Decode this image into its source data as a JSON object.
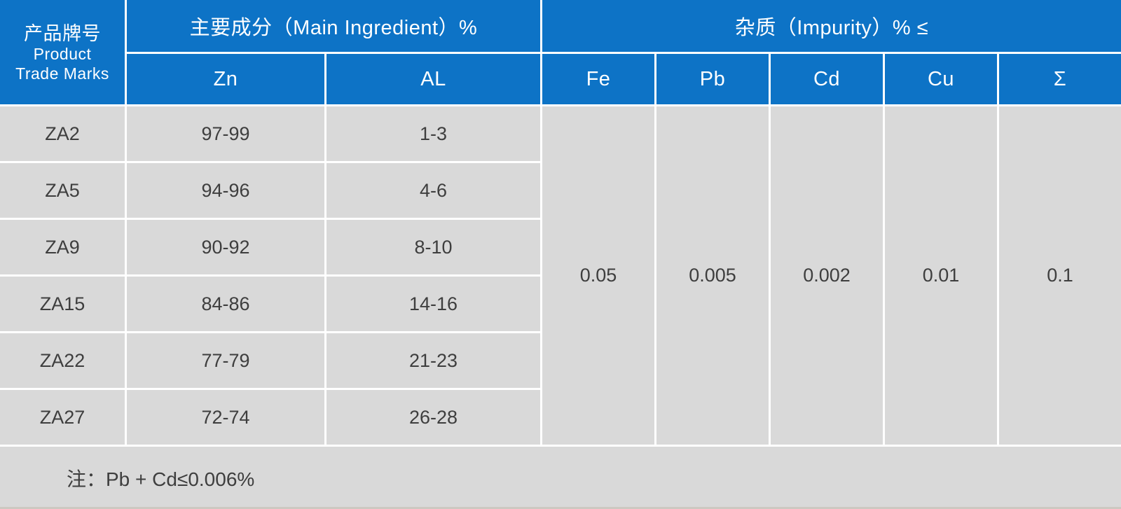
{
  "colors": {
    "header_blue": "#0d73c6",
    "row_gray": "#d9d9d9",
    "border_white": "#ffffff",
    "body_text": "#3e3e3e",
    "header_text": "#ffffff"
  },
  "chart_data": {
    "type": "table",
    "title": "Zinc alloy product composition specification table",
    "header": {
      "corner": [
        "产品牌号",
        "Product",
        "Trade Marks"
      ],
      "groups": [
        {
          "label": "主要成分（Main Ingredient）%",
          "columns": [
            "Zn",
            "AL"
          ]
        },
        {
          "label": "杂质（Impurity）% ≤",
          "columns": [
            "Fe",
            "Pb",
            "Cd",
            "Cu",
            "Σ"
          ]
        }
      ],
      "columns": {
        "zn": "Zn",
        "al": "AL",
        "fe": "Fe",
        "pb": "Pb",
        "cd": "Cd",
        "cu": "Cu",
        "sum": "Σ"
      }
    },
    "rows": [
      {
        "trade_mark": "ZA2",
        "zn": "97-99",
        "al": "1-3"
      },
      {
        "trade_mark": "ZA5",
        "zn": "94-96",
        "al": "4-6"
      },
      {
        "trade_mark": "ZA9",
        "zn": "90-92",
        "al": "8-10"
      },
      {
        "trade_mark": "ZA15",
        "zn": "84-86",
        "al": "14-16"
      },
      {
        "trade_mark": "ZA22",
        "zn": "77-79",
        "al": "21-23"
      },
      {
        "trade_mark": "ZA27",
        "zn": "72-74",
        "al": "26-28"
      }
    ],
    "impurity_limits": {
      "fe": "0.05",
      "pb": "0.005",
      "cd": "0.002",
      "cu": "0.01",
      "sum": "0.1"
    },
    "note": "注：Pb + Cd≤0.006%"
  }
}
